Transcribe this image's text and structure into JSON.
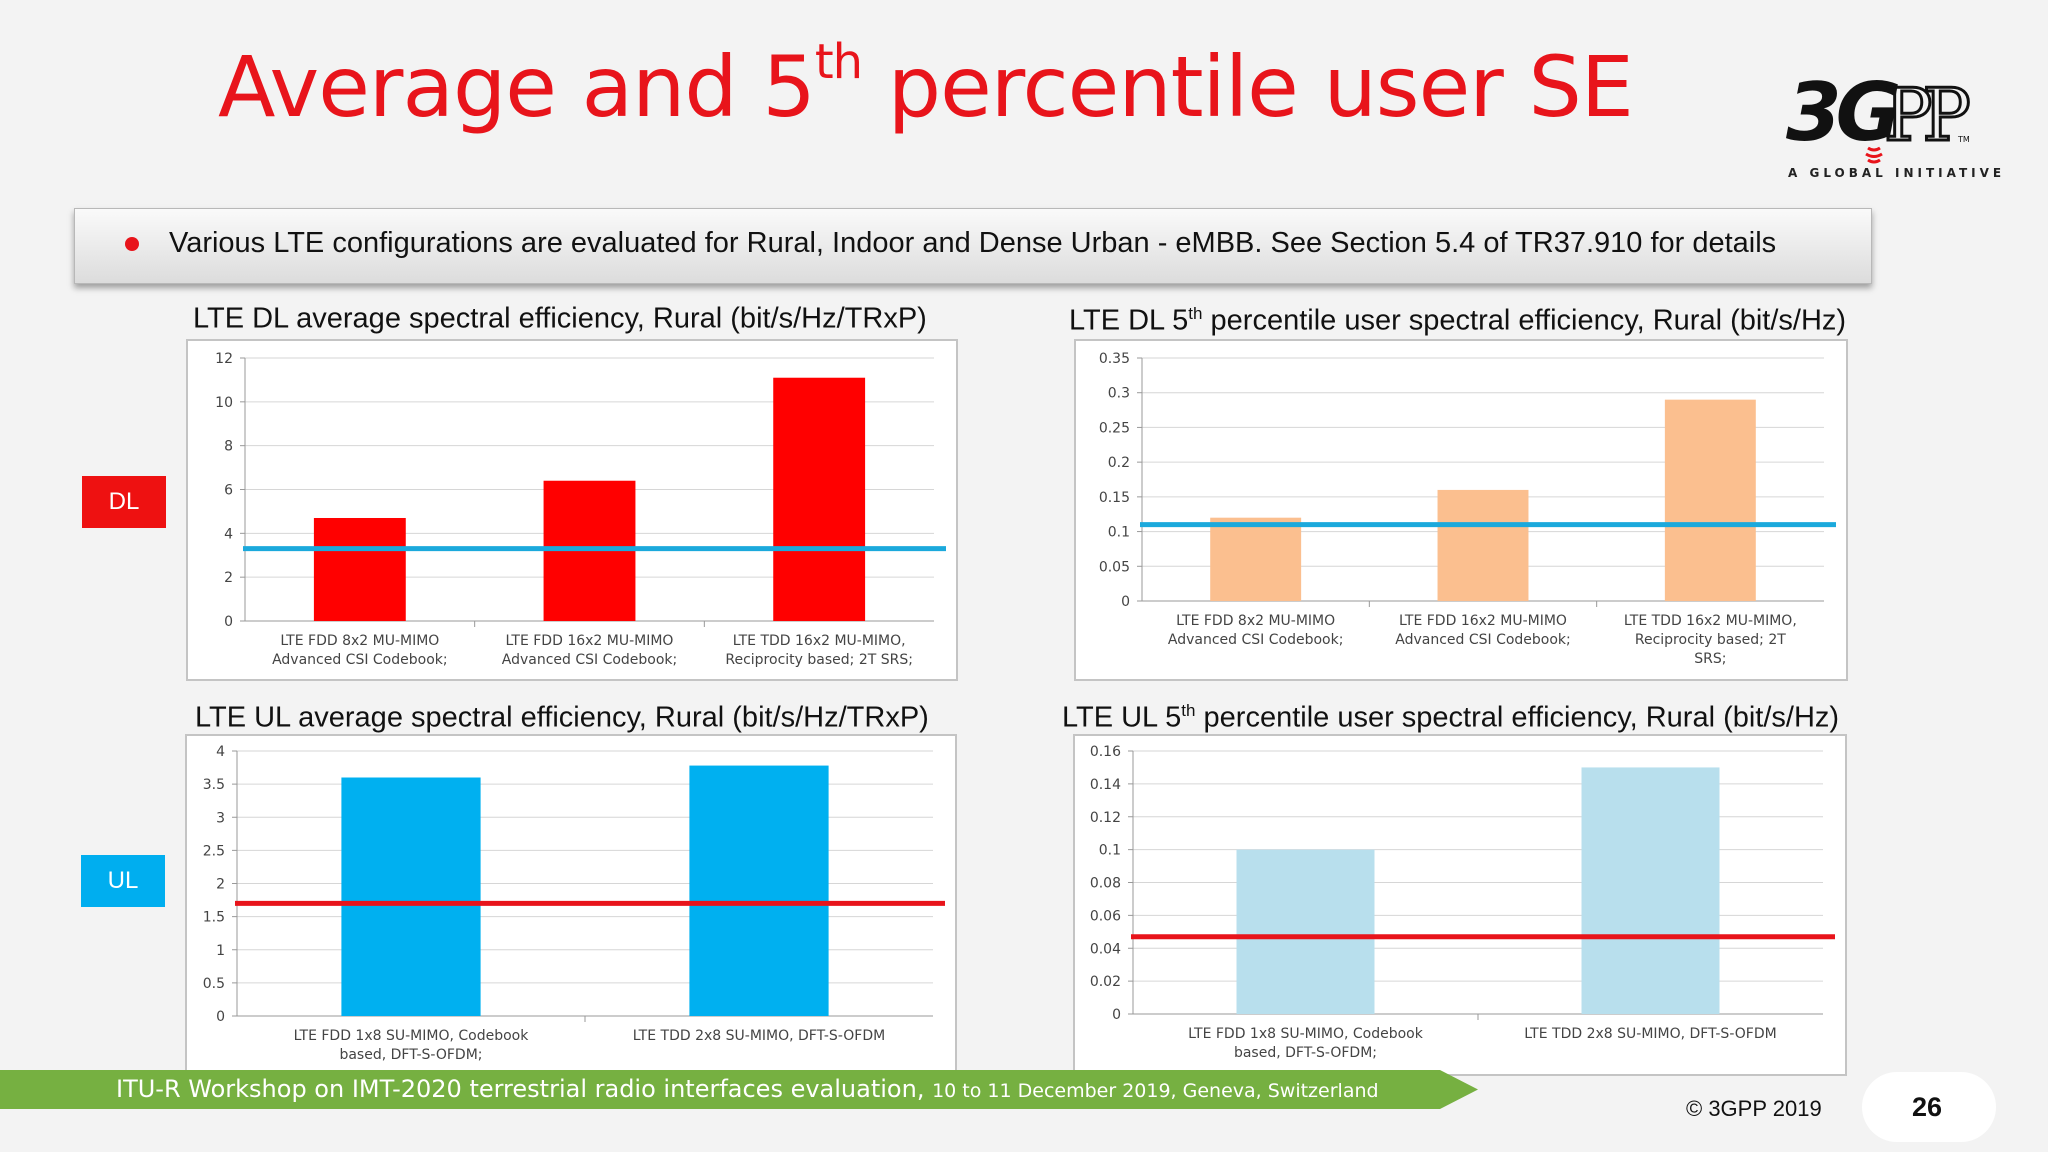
{
  "slide": {
    "title_main": "Average and 5",
    "title_sup": "th",
    "title_rest": " percentile user SE",
    "logo_text": "3GPP",
    "logo_tagline": "A GLOBAL INITIATIVE",
    "bullet": "Various LTE configurations are evaluated for Rural, Indoor and Dense Urban - eMBB. See Section 5.4 of TR37.910 for details",
    "tag_dl": "DL",
    "tag_ul": "UL",
    "footer_main": "ITU-R Workshop on IMT-2020 terrestrial radio interfaces evaluation, ",
    "footer_sub": "10 to 11 December 2019, Geneva, Switzerland",
    "copyright": "© 3GPP 2019",
    "page_number": "26",
    "colors": {
      "title": "#e8141b",
      "dl_tag": "#ee1111",
      "ul_tag": "#00aeef",
      "footer": "#76b041"
    }
  },
  "chart_titles": [
    {
      "pre": "LTE DL average spectral efficiency, Rural (bit/s/Hz/TRxP)",
      "sup": "",
      "post": ""
    },
    {
      "pre": "LTE DL 5",
      "sup": "th",
      "post": " percentile user spectral efficiency, Rural (bit/s/Hz)"
    },
    {
      "pre": "LTE UL average spectral efficiency, Rural (bit/s/Hz/TRxP)",
      "sup": "",
      "post": ""
    },
    {
      "pre": "LTE UL 5",
      "sup": "th",
      "post": " percentile user spectral efficiency, Rural (bit/s/Hz)"
    }
  ],
  "chart_data": [
    {
      "type": "bar",
      "categories": [
        [
          "LTE FDD 8x2 MU-MIMO",
          "Advanced CSI Codebook;"
        ],
        [
          "LTE FDD 16x2 MU-MIMO",
          "Advanced CSI Codebook;"
        ],
        [
          "LTE TDD 16x2 MU-MIMO,",
          "Reciprocity based; 2T SRS;"
        ]
      ],
      "values": [
        4.7,
        6.4,
        11.1
      ],
      "ylim": [
        0,
        12
      ],
      "yticks": [
        "0",
        "2",
        "4",
        "6",
        "8",
        "10",
        "12"
      ],
      "bar_color": "#ff0000",
      "threshold": 3.3,
      "threshold_color": "#1ba9dc",
      "grid": true
    },
    {
      "type": "bar",
      "categories": [
        [
          "LTE FDD 8x2 MU-MIMO",
          "Advanced CSI Codebook;"
        ],
        [
          "LTE FDD 16x2 MU-MIMO",
          "Advanced CSI Codebook;"
        ],
        [
          "LTE TDD 16x2 MU-MIMO,",
          "Reciprocity based; 2T",
          "SRS;"
        ]
      ],
      "values": [
        0.12,
        0.16,
        0.29
      ],
      "ylim": [
        0,
        0.35
      ],
      "yticks": [
        "0",
        "0.05",
        "0.1",
        "0.15",
        "0.2",
        "0.25",
        "0.3",
        "0.35"
      ],
      "bar_color": "#fbbf8f",
      "threshold": 0.11,
      "threshold_color": "#1ba9dc",
      "grid": true
    },
    {
      "type": "bar",
      "categories": [
        [
          "LTE FDD 1x8 SU-MIMO, Codebook",
          "based, DFT-S-OFDM;"
        ],
        [
          "LTE TDD 2x8 SU-MIMO, DFT-S-OFDM"
        ]
      ],
      "values": [
        3.6,
        3.78
      ],
      "ylim": [
        0,
        4
      ],
      "yticks": [
        "0",
        "0.5",
        "1",
        "1.5",
        "2",
        "2.5",
        "3",
        "3.5",
        "4"
      ],
      "bar_color": "#00b0f0",
      "threshold": 1.7,
      "threshold_color": "#e8141b",
      "grid": true
    },
    {
      "type": "bar",
      "categories": [
        [
          "LTE FDD 1x8 SU-MIMO, Codebook",
          "based, DFT-S-OFDM;"
        ],
        [
          "LTE TDD 2x8 SU-MIMO, DFT-S-OFDM"
        ]
      ],
      "values": [
        0.1,
        0.15
      ],
      "ylim": [
        0,
        0.16
      ],
      "yticks": [
        "0",
        "0.02",
        "0.04",
        "0.06",
        "0.08",
        "0.1",
        "0.12",
        "0.14",
        "0.16"
      ],
      "bar_color": "#b8dfed",
      "threshold": 0.047,
      "threshold_color": "#e8141b",
      "grid": true
    }
  ]
}
